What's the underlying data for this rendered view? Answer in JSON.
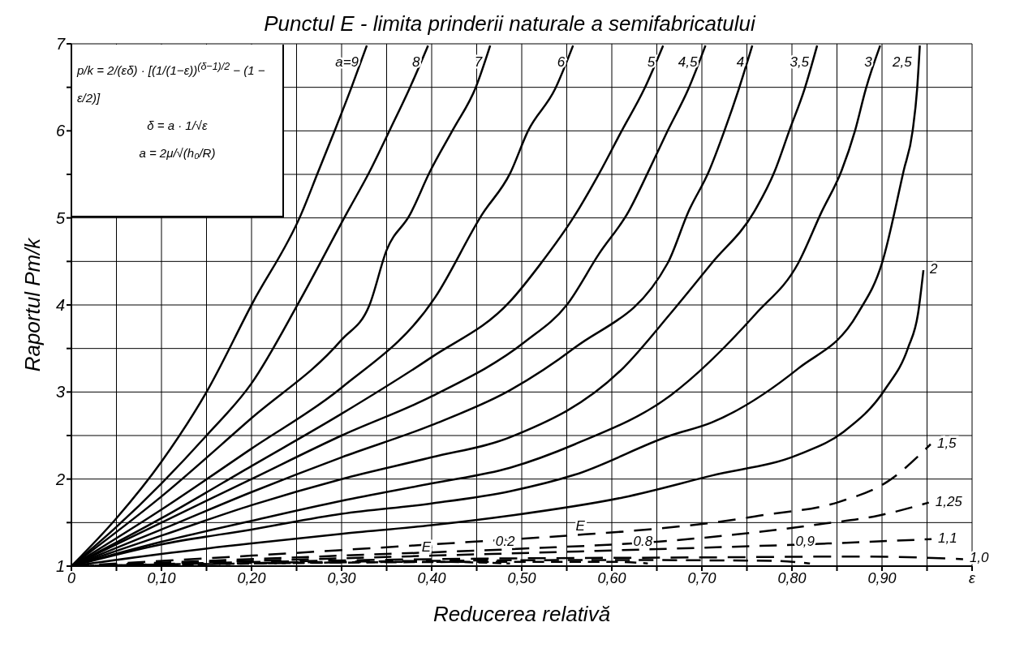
{
  "chart_data": {
    "type": "line",
    "title": "Punctul E - limita prinderii naturale a semifabricatului",
    "xlabel": "Reducerea  relativă",
    "ylabel": "Raportul   Pm/k",
    "xlim": [
      0,
      1
    ],
    "ylim": [
      1,
      7
    ],
    "xticks": [
      {
        "value": 0,
        "label": "0"
      },
      {
        "value": 0.05,
        "label": null
      },
      {
        "value": 0.1,
        "label": "0,10"
      },
      {
        "value": 0.15,
        "label": null
      },
      {
        "value": 0.2,
        "label": "0,20"
      },
      {
        "value": 0.25,
        "label": null
      },
      {
        "value": 0.3,
        "label": "0,30"
      },
      {
        "value": 0.35,
        "label": null
      },
      {
        "value": 0.4,
        "label": "0,40"
      },
      {
        "value": 0.45,
        "label": null
      },
      {
        "value": 0.5,
        "label": "0,50"
      },
      {
        "value": 0.55,
        "label": null
      },
      {
        "value": 0.6,
        "label": "0,60"
      },
      {
        "value": 0.65,
        "label": null
      },
      {
        "value": 0.7,
        "label": "0,70"
      },
      {
        "value": 0.75,
        "label": null
      },
      {
        "value": 0.8,
        "label": "0,80"
      },
      {
        "value": 0.85,
        "label": null
      },
      {
        "value": 0.9,
        "label": "0,90"
      },
      {
        "value": 0.95,
        "label": null
      },
      {
        "value": 1,
        "label": "ε"
      }
    ],
    "yticks": [
      1,
      {
        "value": 1.5,
        "label": null
      },
      2,
      {
        "value": 2.5,
        "label": null
      },
      3,
      {
        "value": 3.5,
        "label": null
      },
      4,
      {
        "value": 4.5,
        "label": null
      },
      5,
      {
        "value": 5.5,
        "label": null
      },
      6,
      {
        "value": 6.5,
        "label": null
      },
      7
    ],
    "grid": true,
    "marker": "none",
    "annotations": [
      "p/k = 2/(εδ) · [(1/(1−ε))$^{(δ−1)/2}$ − (1 − ε/2)]",
      "δ = a · 1/√ε",
      "a = 2μ/√(h₀/R)",
      {
        "text": "E",
        "x": 0.394,
        "y": 1.12
      },
      {
        "text": "E",
        "x": 0.565,
        "y": 1.36
      }
    ],
    "series": [
      {
        "name": "a=9",
        "color": "#000000",
        "line_style": "solid",
        "x": [
          0,
          0.05,
          0.1,
          0.15,
          0.201,
          0.255,
          0.274,
          0.293,
          0.311,
          0.328
        ],
        "values": [
          1,
          1.55,
          2.2,
          3.0,
          4.02,
          5.04,
          5.53,
          6.02,
          6.5,
          6.98
        ]
      },
      {
        "name": "8",
        "color": "#000000",
        "line_style": "solid",
        "x": [
          0,
          0.05,
          0.1,
          0.15,
          0.2,
          0.252,
          0.305,
          0.331,
          0.354,
          0.376,
          0.396
        ],
        "values": [
          1,
          1.45,
          1.95,
          2.5,
          3.1,
          4.02,
          5.04,
          5.53,
          6.02,
          6.5,
          6.98
        ]
      },
      {
        "name": "7",
        "color": "#000000",
        "line_style": "solid",
        "x": [
          0,
          0.1,
          0.2,
          0.3,
          0.331,
          0.35,
          0.376,
          0.398,
          0.424,
          0.449,
          0.465
        ],
        "values": [
          1,
          1.8,
          2.7,
          3.6,
          4.0,
          4.63,
          5.04,
          5.53,
          6.02,
          6.5,
          6.98
        ]
      },
      {
        "name": "6",
        "color": "#000000",
        "line_style": "solid",
        "x": [
          0,
          0.1,
          0.2,
          0.3,
          0.404,
          0.456,
          0.487,
          0.507,
          0.537,
          0.557
        ],
        "values": [
          1,
          1.65,
          2.35,
          3.05,
          4.09,
          5.04,
          5.51,
          6.0,
          6.48,
          6.98
        ]
      },
      {
        "name": "5",
        "color": "#000000",
        "line_style": "solid",
        "x": [
          0,
          0.1,
          0.2,
          0.3,
          0.4,
          0.487,
          0.52,
          0.559,
          0.586,
          0.611,
          0.636,
          0.657
        ],
        "values": [
          1,
          1.55,
          2.15,
          2.75,
          3.4,
          4.04,
          4.46,
          5.03,
          5.51,
          6.0,
          6.48,
          6.98
        ]
      },
      {
        "name": "4,5",
        "color": "#000000",
        "line_style": "solid",
        "x": [
          0,
          0.1,
          0.2,
          0.3,
          0.4,
          0.504,
          0.55,
          0.586,
          0.619,
          0.64,
          0.662,
          0.685,
          0.704
        ],
        "values": [
          1,
          1.5,
          2.0,
          2.5,
          2.95,
          3.58,
          4.0,
          4.59,
          5.08,
          5.52,
          6.0,
          6.48,
          6.98
        ]
      },
      {
        "name": "4",
        "color": "#000000",
        "line_style": "solid",
        "x": [
          0,
          0.1,
          0.2,
          0.3,
          0.4,
          0.487,
          0.559,
          0.662,
          0.685,
          0.708,
          0.725,
          0.741,
          0.756
        ],
        "values": [
          1,
          1.42,
          1.85,
          2.25,
          2.62,
          3.02,
          3.51,
          4.48,
          5.07,
          5.54,
          6.0,
          6.48,
          6.98
        ]
      },
      {
        "name": "3,5",
        "color": "#000000",
        "line_style": "solid",
        "x": [
          0,
          0.1,
          0.2,
          0.3,
          0.4,
          0.487,
          0.613,
          0.665,
          0.711,
          0.758,
          0.781,
          0.797,
          0.814,
          0.828
        ],
        "values": [
          1,
          1.35,
          1.7,
          2.0,
          2.25,
          2.48,
          3.28,
          3.9,
          4.48,
          5.07,
          5.54,
          6.0,
          6.48,
          6.98
        ]
      },
      {
        "name": "3",
        "color": "#000000",
        "line_style": "solid",
        "x": [
          0,
          0.1,
          0.2,
          0.3,
          0.4,
          0.487,
          0.559,
          0.665,
          0.76,
          0.807,
          0.833,
          0.855,
          0.87,
          0.882,
          0.898
        ],
        "values": [
          1,
          1.28,
          1.52,
          1.75,
          1.95,
          2.13,
          2.4,
          2.96,
          3.9,
          4.48,
          5.07,
          5.54,
          6.0,
          6.48,
          6.98
        ]
      },
      {
        "name": "2,5",
        "color": "#000000",
        "line_style": "solid",
        "x": [
          0,
          0.1,
          0.2,
          0.3,
          0.4,
          0.487,
          0.559,
          0.665,
          0.711,
          0.807,
          0.873,
          0.9,
          0.924,
          0.934,
          0.939,
          0.942
        ],
        "values": [
          1,
          1.25,
          1.42,
          1.6,
          1.72,
          1.86,
          2.05,
          2.5,
          2.65,
          3.27,
          3.9,
          4.48,
          5.54,
          6.0,
          6.48,
          6.98
        ]
      },
      {
        "name": "2",
        "color": "#000000",
        "line_style": "solid",
        "x": [
          0,
          0.1,
          0.2,
          0.3,
          0.4,
          0.487,
          0.613,
          0.711,
          0.807,
          0.857,
          0.904,
          0.929,
          0.94,
          0.946
        ],
        "values": [
          1,
          1.14,
          1.26,
          1.37,
          1.47,
          1.58,
          1.79,
          2.04,
          2.28,
          2.54,
          3.04,
          3.51,
          3.9,
          4.4
        ]
      },
      {
        "name": "1,5",
        "color": "#000000",
        "line_style": "dashed",
        "x": [
          0,
          0.2,
          0.4,
          0.55,
          0.65,
          0.72,
          0.764,
          0.853,
          0.906,
          0.954
        ],
        "values": [
          1,
          1.12,
          1.25,
          1.35,
          1.43,
          1.51,
          1.58,
          1.74,
          1.97,
          2.4
        ]
      },
      {
        "name": "1,25",
        "color": "#000000",
        "line_style": "dashed",
        "x": [
          0,
          0.3,
          0.5,
          0.65,
          0.735,
          0.83,
          0.896,
          0.952
        ],
        "values": [
          1,
          1.12,
          1.2,
          1.28,
          1.36,
          1.48,
          1.58,
          1.73
        ]
      },
      {
        "name": "1,1",
        "color": "#000000",
        "line_style": "dashed",
        "x": [
          0,
          0.4,
          0.6,
          0.84,
          0.955
        ],
        "values": [
          1,
          1.12,
          1.18,
          1.26,
          1.31
        ]
      },
      {
        "name": "1,0",
        "color": "#000000",
        "line_style": "dashed",
        "x": [
          0,
          0.4,
          0.7,
          0.88,
          0.99
        ],
        "values": [
          1,
          1.08,
          1.1,
          1.11,
          1.08
        ]
      },
      {
        "name": "0,9",
        "color": "#000000",
        "line_style": "dashed",
        "x": [
          0,
          0.3,
          0.6,
          0.78,
          0.82
        ],
        "values": [
          1,
          1.05,
          1.07,
          1.06,
          1.03
        ]
      },
      {
        "name": "0.8",
        "color": "#000000",
        "line_style": "dashed",
        "x": [
          0,
          0.3,
          0.5,
          0.6,
          0.64
        ],
        "values": [
          1,
          1.04,
          1.05,
          1.05,
          1.03
        ]
      },
      {
        "name": "0.2",
        "color": "#000000",
        "line_style": "dashed",
        "x": [
          0,
          0.2,
          0.4,
          0.487
        ],
        "values": [
          1,
          1.03,
          1.05,
          1.03
        ]
      }
    ]
  }
}
